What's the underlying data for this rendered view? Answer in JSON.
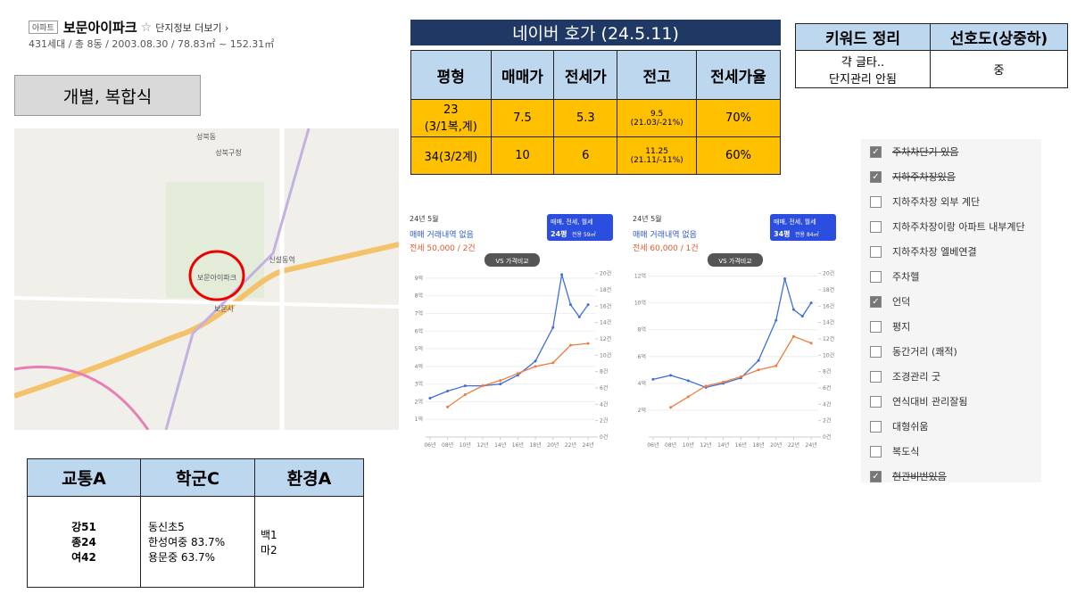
{
  "header": {
    "badge": "아파트",
    "name": "보문아이파크",
    "link": "단지정보 더보기",
    "info": "431세대 / 총 8동 / 2003.08.30 / 78.83㎡ ~ 152.31㎡"
  },
  "type_label": "개별, 복합식",
  "map": {
    "labels": [
      "성북구청",
      "보문아이파크",
      "보문사",
      "신설동역",
      "성북동"
    ]
  },
  "price_table": {
    "title": "네이버 호가 (24.5.11)",
    "headers": [
      "평형",
      "매매가",
      "전세가",
      "전고",
      "전세가율"
    ],
    "rows": [
      [
        "23\n(3/1복,계)",
        "7.5",
        "5.3",
        "9.5\n(21.03/-21%)",
        "70%"
      ],
      [
        "34(3/2계)",
        "10",
        "6",
        "11.25\n(21.11/-11%)",
        "60%"
      ]
    ]
  },
  "keyword_table": {
    "headers": [
      "키워드 정리",
      "선호도(상중하)"
    ],
    "rows": [
      [
        "갹 글타..\n단지관리 안됨",
        "중"
      ]
    ]
  },
  "rating_table": {
    "headers": [
      "교통A",
      "학군C",
      "환경A"
    ],
    "rows": [
      [
        "강51\n종24\n여42",
        "동신초5\n한성여중 83.7%\n용문중 63.7%",
        "백1\n마2"
      ]
    ]
  },
  "checklist": [
    {
      "label": "주차차단기 있음",
      "checked": true,
      "struck": true
    },
    {
      "label": "지하주차장있음",
      "checked": true,
      "struck": true
    },
    {
      "label": "지하주차장 외부 계단",
      "checked": false,
      "struck": false
    },
    {
      "label": "지하주차장이랑 아파트 내부계단",
      "checked": false,
      "struck": false
    },
    {
      "label": "지하주차장 엘베연결",
      "checked": false,
      "struck": false
    },
    {
      "label": "주차헬",
      "checked": false,
      "struck": false
    },
    {
      "label": "언덕",
      "checked": true,
      "struck": false
    },
    {
      "label": "평지",
      "checked": false,
      "struck": false
    },
    {
      "label": "동간거리 (쾌적)",
      "checked": false,
      "struck": false
    },
    {
      "label": "조경관리 굿",
      "checked": false,
      "struck": false
    },
    {
      "label": "연식대비 관리잘됨",
      "checked": false,
      "struck": false
    },
    {
      "label": "대형쉬움",
      "checked": false,
      "struck": false
    },
    {
      "label": "복도식",
      "checked": false,
      "struck": false
    },
    {
      "label": "현관비번있음",
      "checked": true,
      "struck": true
    }
  ],
  "chart_data": [
    {
      "type": "line",
      "month": "24년 5월",
      "status": "매매 거래내역 없음",
      "rent": "전세 50,000 / 2건",
      "filter": "매매, 전세, 월세",
      "size": "24평",
      "size_detail": "전용 59㎡",
      "compare": "VS 가격비교",
      "xlim": [
        2005.5,
        2024.8
      ],
      "ylim": [
        0,
        9.5
      ],
      "y2lim": [
        0,
        20.5
      ],
      "xticks": [
        {
          "value": 2006,
          "label": "06년"
        },
        {
          "value": 2008,
          "label": "08년"
        },
        {
          "value": 2010,
          "label": "10년"
        },
        {
          "value": 2012,
          "label": "12년"
        },
        {
          "value": 2014,
          "label": "14년"
        },
        {
          "value": 2016,
          "label": "16년"
        },
        {
          "value": 2018,
          "label": "18년"
        },
        {
          "value": 2020,
          "label": "20년"
        },
        {
          "value": 2022,
          "label": "22년"
        },
        {
          "value": 2024,
          "label": "24년"
        }
      ],
      "yticks": [
        {
          "value": 1,
          "label": "1억"
        },
        {
          "value": 2,
          "label": "2억"
        },
        {
          "value": 3,
          "label": "3억"
        },
        {
          "value": 4,
          "label": "4억"
        },
        {
          "value": 5,
          "label": "5억"
        },
        {
          "value": 6,
          "label": "6억"
        },
        {
          "value": 7,
          "label": "7억"
        },
        {
          "value": 8,
          "label": "8억"
        },
        {
          "value": 9,
          "label": "9억"
        }
      ],
      "y2ticks": [
        {
          "value": 0,
          "label": "0건"
        },
        {
          "value": 2,
          "label": "2건"
        },
        {
          "value": 4,
          "label": "4건"
        },
        {
          "value": 6,
          "label": "6건"
        },
        {
          "value": 8,
          "label": "8건"
        },
        {
          "value": 10,
          "label": "10건"
        },
        {
          "value": 12,
          "label": "12건"
        },
        {
          "value": 14,
          "label": "14건"
        },
        {
          "value": 16,
          "label": "16건"
        },
        {
          "value": 18,
          "label": "18건"
        },
        {
          "value": 20,
          "label": "20건"
        }
      ],
      "series": [
        {
          "color": "#3f6fd8",
          "x": [
            2006,
            2008,
            2010,
            2012,
            2014,
            2016,
            2018,
            2020,
            2021,
            2022,
            2023,
            2024
          ],
          "values": [
            2.2,
            2.6,
            2.9,
            2.9,
            3.0,
            3.5,
            4.3,
            6.2,
            9.2,
            7.5,
            6.8,
            7.5
          ]
        },
        {
          "color": "#f07c3c",
          "x": [
            2008,
            2010,
            2012,
            2014,
            2016,
            2018,
            2020,
            2022,
            2024
          ],
          "values": [
            1.7,
            2.4,
            2.9,
            3.2,
            3.6,
            4.0,
            4.2,
            5.2,
            5.3
          ]
        }
      ]
    },
    {
      "type": "line",
      "month": "24년 5월",
      "status": "매매 거래내역 없음",
      "rent": "전세 60,000 / 1건",
      "filter": "매매, 전세, 월세",
      "size": "34평",
      "size_detail": "전용 84㎡",
      "compare": "VS 가격비교",
      "xlim": [
        2005.5,
        2024.8
      ],
      "ylim": [
        0,
        12.5
      ],
      "y2lim": [
        0,
        20.5
      ],
      "xticks": [
        {
          "value": 2006,
          "label": "06년"
        },
        {
          "value": 2008,
          "label": "08년"
        },
        {
          "value": 2010,
          "label": "10년"
        },
        {
          "value": 2012,
          "label": "12년"
        },
        {
          "value": 2014,
          "label": "14년"
        },
        {
          "value": 2016,
          "label": "16년"
        },
        {
          "value": 2018,
          "label": "18년"
        },
        {
          "value": 2020,
          "label": "20년"
        },
        {
          "value": 2022,
          "label": "22년"
        },
        {
          "value": 2024,
          "label": "24년"
        }
      ],
      "yticks": [
        {
          "value": 2,
          "label": "2억"
        },
        {
          "value": 4,
          "label": "4억"
        },
        {
          "value": 6,
          "label": "6억"
        },
        {
          "value": 8,
          "label": "8억"
        },
        {
          "value": 10,
          "label": "10억"
        },
        {
          "value": 12,
          "label": "12억"
        }
      ],
      "y2ticks": [
        {
          "value": 0,
          "label": "0건"
        },
        {
          "value": 2,
          "label": "2건"
        },
        {
          "value": 4,
          "label": "4건"
        },
        {
          "value": 6,
          "label": "6건"
        },
        {
          "value": 8,
          "label": "8건"
        },
        {
          "value": 10,
          "label": "10건"
        },
        {
          "value": 12,
          "label": "12건"
        },
        {
          "value": 14,
          "label": "14건"
        },
        {
          "value": 16,
          "label": "16건"
        },
        {
          "value": 18,
          "label": "18건"
        },
        {
          "value": 20,
          "label": "20건"
        }
      ],
      "series": [
        {
          "color": "#3f6fd8",
          "x": [
            2006,
            2008,
            2010,
            2012,
            2014,
            2016,
            2018,
            2020,
            2021,
            2022,
            2023,
            2024
          ],
          "values": [
            4.3,
            4.6,
            4.2,
            3.7,
            4.0,
            4.4,
            5.7,
            8.7,
            11.8,
            9.5,
            9.0,
            10.0
          ]
        },
        {
          "color": "#f07c3c",
          "x": [
            2008,
            2010,
            2012,
            2014,
            2016,
            2018,
            2020,
            2022,
            2024
          ],
          "values": [
            2.2,
            3.0,
            3.8,
            4.1,
            4.5,
            5.0,
            5.3,
            7.5,
            7.0
          ]
        }
      ]
    }
  ]
}
